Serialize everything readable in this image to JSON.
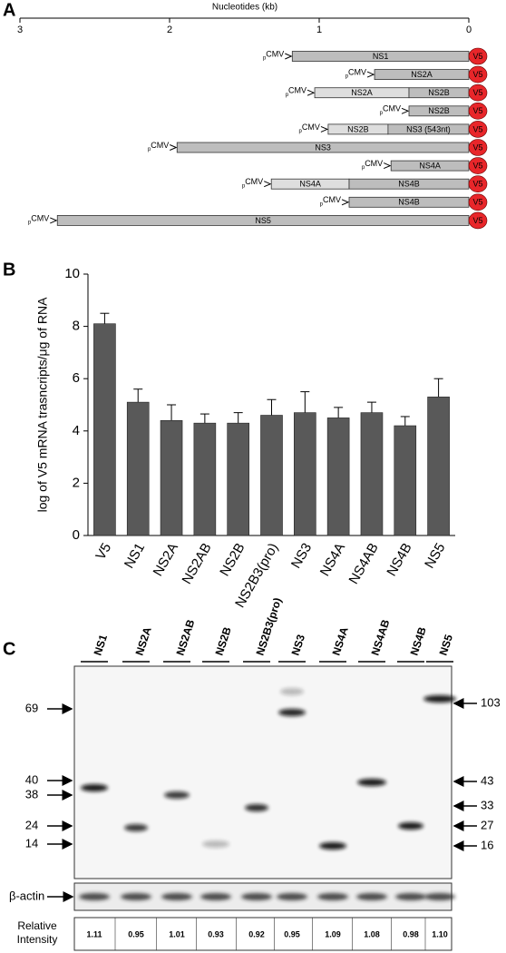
{
  "panel_labels": [
    "A",
    "B",
    "C"
  ],
  "chart_data": [
    {
      "type": "construct-map",
      "xlabel": "Nucleotides (kb)",
      "xlim": [
        3,
        0
      ],
      "xticks": [
        3,
        2,
        1,
        0
      ],
      "promoter_prefix": "p",
      "promoter": "CMV",
      "tag": "V5",
      "tag_color": "#e8262a",
      "constructs": [
        {
          "segments": [
            {
              "label": "NS1",
              "start": 1.18,
              "end": 0,
              "color": "#bdbdbd"
            }
          ]
        },
        {
          "segments": [
            {
              "label": "NS2A",
              "start": 0.63,
              "end": 0,
              "color": "#bdbdbd"
            }
          ]
        },
        {
          "segments": [
            {
              "label": "NS2A",
              "start": 1.03,
              "end": 0.4,
              "color": "#dedede"
            },
            {
              "label": "NS2B",
              "start": 0.4,
              "end": 0,
              "color": "#bdbdbd"
            }
          ]
        },
        {
          "segments": [
            {
              "label": "NS2B",
              "start": 0.4,
              "end": 0,
              "color": "#bdbdbd"
            }
          ]
        },
        {
          "segments": [
            {
              "label": "NS2B",
              "start": 0.94,
              "end": 0.54,
              "color": "#dedede"
            },
            {
              "label": "NS3 (543nt)",
              "start": 0.54,
              "end": 0,
              "color": "#bdbdbd"
            }
          ]
        },
        {
          "segments": [
            {
              "label": "NS3",
              "start": 1.95,
              "end": 0,
              "color": "#bdbdbd"
            }
          ]
        },
        {
          "segments": [
            {
              "label": "NS4A",
              "start": 0.52,
              "end": 0,
              "color": "#bdbdbd"
            }
          ]
        },
        {
          "segments": [
            {
              "label": "NS4A",
              "start": 1.32,
              "end": 0.8,
              "color": "#dedede"
            },
            {
              "label": "NS4B",
              "start": 0.8,
              "end": 0,
              "color": "#bdbdbd"
            }
          ]
        },
        {
          "segments": [
            {
              "label": "NS4B",
              "start": 0.8,
              "end": 0,
              "color": "#bdbdbd"
            }
          ]
        },
        {
          "segments": [
            {
              "label": "NS5",
              "start": 2.75,
              "end": 0,
              "color": "#bdbdbd"
            }
          ]
        }
      ]
    },
    {
      "type": "bar",
      "ylabel": "log of V5 mRNA trasncripts/μg of RNA",
      "categories": [
        "V5",
        "NS1",
        "NS2A",
        "NS2AB",
        "NS2B",
        "NS2B3(pro)",
        "NS3",
        "NS4A",
        "NS4AB",
        "NS4B",
        "NS5"
      ],
      "values": [
        8.1,
        5.1,
        4.4,
        4.3,
        4.3,
        4.6,
        4.7,
        4.5,
        4.7,
        4.2,
        5.3
      ],
      "errors": [
        0.4,
        0.5,
        0.6,
        0.35,
        0.4,
        0.6,
        0.8,
        0.4,
        0.4,
        0.35,
        0.7
      ],
      "color": "#595959",
      "ylim": [
        0,
        10
      ],
      "yticks": [
        0,
        2,
        4,
        6,
        8,
        10
      ]
    }
  ],
  "blot": {
    "lanes": [
      "NS1",
      "NS2A",
      "NS2AB",
      "NS2B",
      "NS2B3(pro)",
      "NS3",
      "NS4A",
      "NS4AB",
      "NS4B",
      "NS5"
    ],
    "left_markers": [
      69,
      40,
      38,
      24,
      14
    ],
    "right_markers": [
      103,
      43,
      33,
      27,
      16
    ],
    "loading_control": "β-actin",
    "intensity_label": "Relative Intensity",
    "relative_intensity": [
      "1.11",
      "0.95",
      "1.01",
      "0.93",
      "0.92",
      "0.95",
      "1.09",
      "1.08",
      "0.98",
      "1.10"
    ]
  }
}
